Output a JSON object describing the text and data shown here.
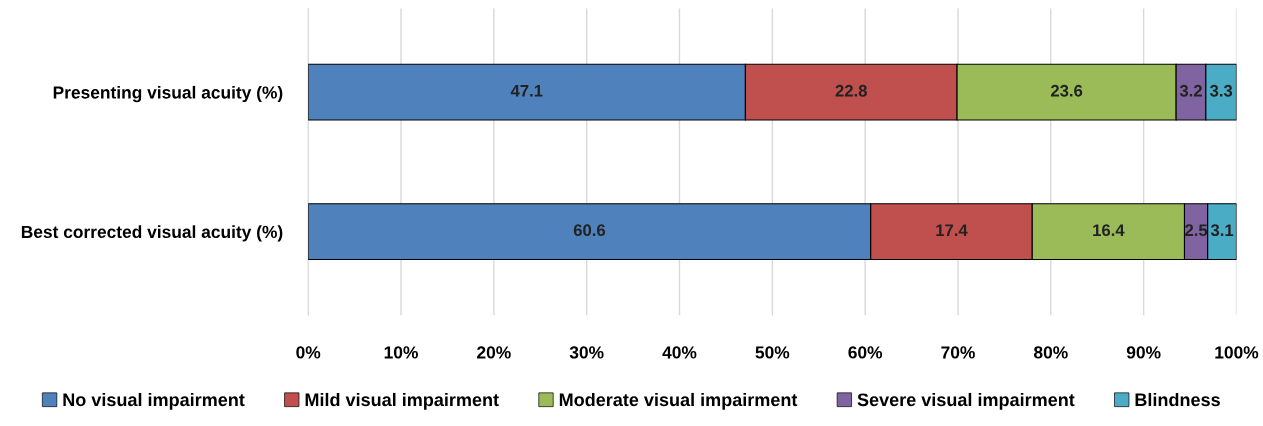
{
  "chart_data": {
    "type": "bar",
    "orientation": "horizontal",
    "stacked": true,
    "categories": [
      "Presenting visual acuity (%)",
      "Best corrected visual acuity (%)"
    ],
    "series": [
      {
        "name": "No visual impairment",
        "color": "#4f81bd",
        "values": [
          47.1,
          60.6
        ]
      },
      {
        "name": "Mild visual impairment",
        "color": "#c0504d",
        "values": [
          22.8,
          17.4
        ]
      },
      {
        "name": "Moderate visual impairment",
        "color": "#9bbb59",
        "values": [
          23.6,
          16.4
        ]
      },
      {
        "name": "Severe visual impairment",
        "color": "#8064a2",
        "values": [
          3.2,
          2.5
        ]
      },
      {
        "name": "Blindness",
        "color": "#4bacc6",
        "values": [
          3.3,
          3.1
        ]
      }
    ],
    "xlim": [
      0,
      100
    ],
    "xticks": [
      {
        "value": 0,
        "label": "0%"
      },
      {
        "value": 10,
        "label": "10%"
      },
      {
        "value": 20,
        "label": "20%"
      },
      {
        "value": 30,
        "label": "30%"
      },
      {
        "value": 40,
        "label": "40%"
      },
      {
        "value": 50,
        "label": "50%"
      },
      {
        "value": 60,
        "label": "60%"
      },
      {
        "value": 70,
        "label": "70%"
      },
      {
        "value": 80,
        "label": "80%"
      },
      {
        "value": 90,
        "label": "90%"
      },
      {
        "value": 100,
        "label": "100%"
      }
    ],
    "grid": "x",
    "legend": "bottom",
    "data_labels": true
  }
}
